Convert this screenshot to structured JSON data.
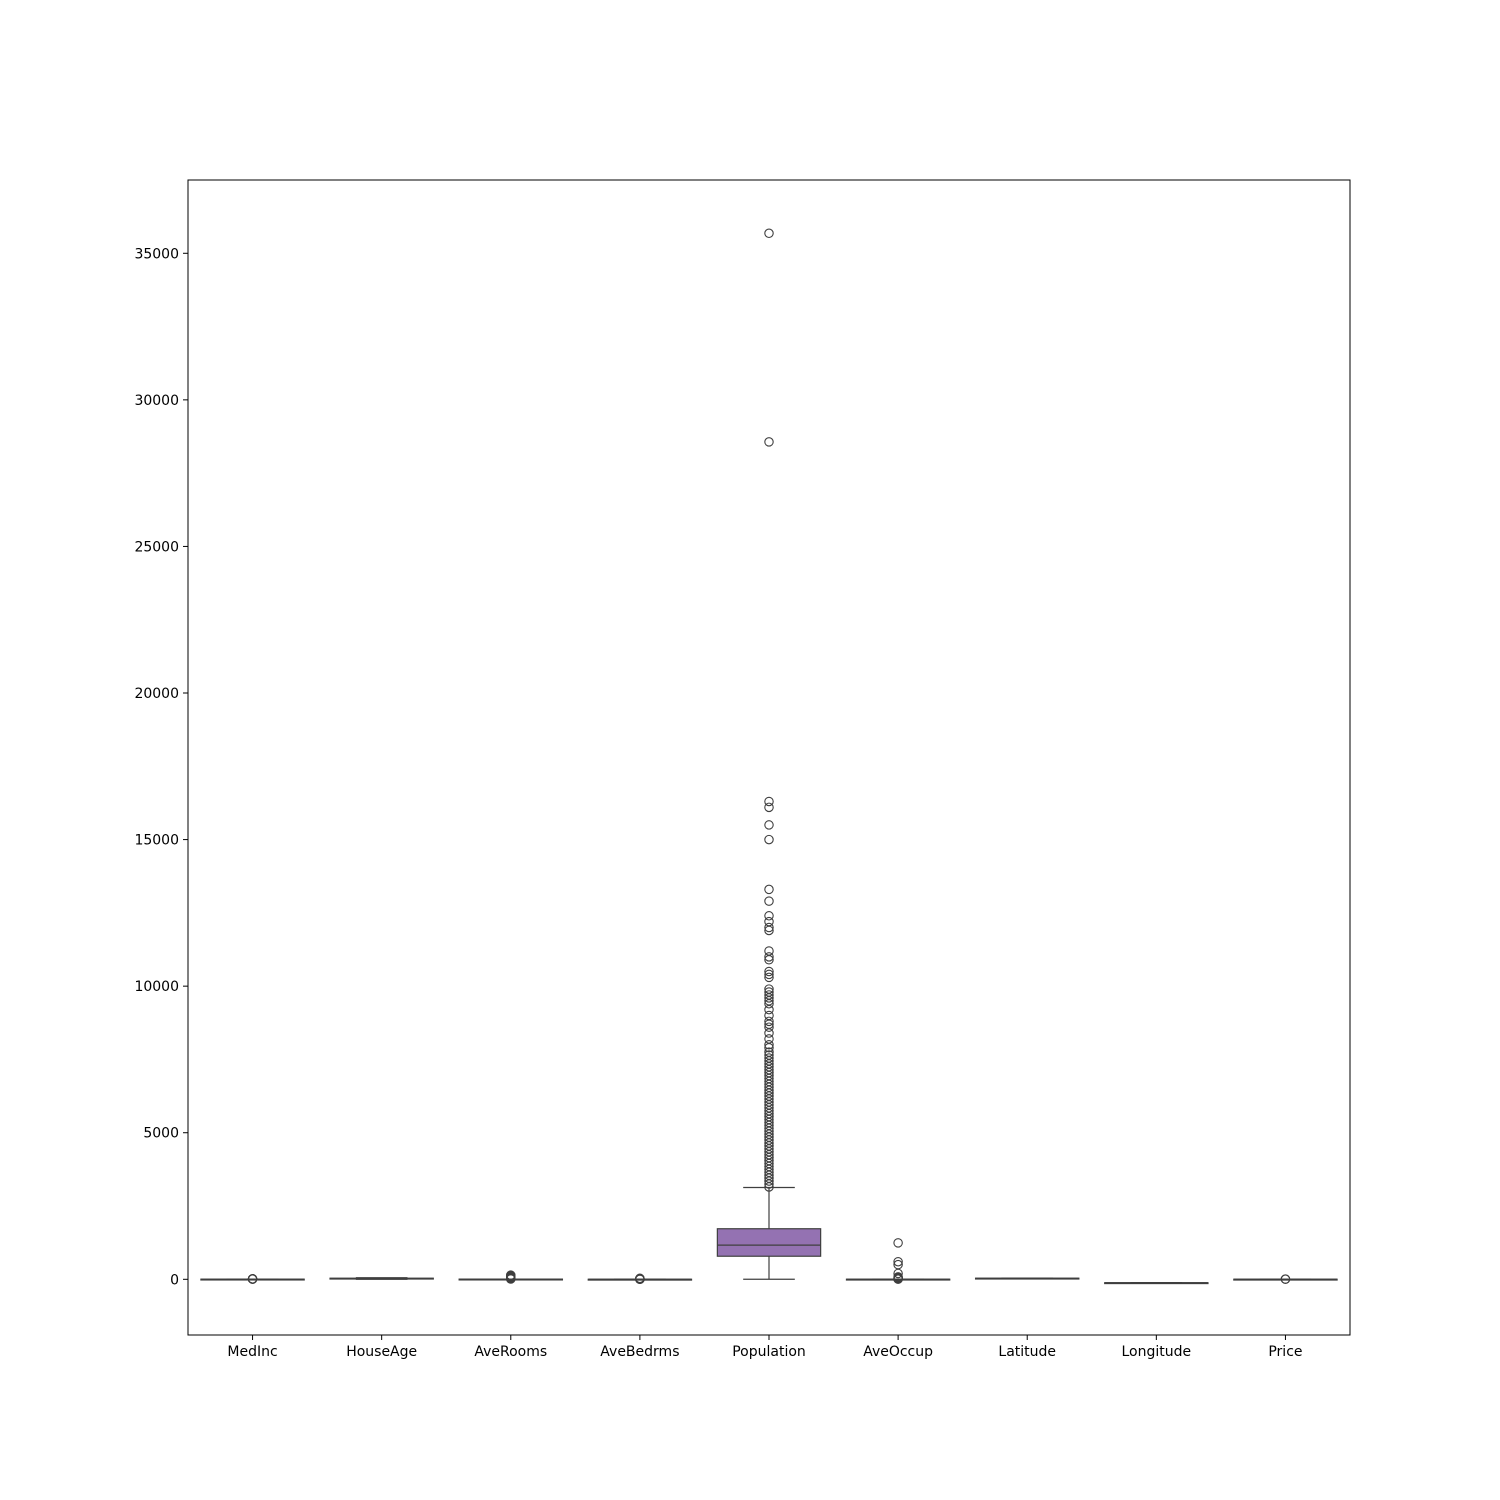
{
  "chart_data": {
    "type": "box",
    "title": "",
    "xlabel": "",
    "ylabel": "",
    "ylim": [
      -1900,
      37500
    ],
    "yticks": [
      0,
      5000,
      10000,
      15000,
      20000,
      25000,
      30000,
      35000
    ],
    "ytick_labels": [
      "0",
      "5000",
      "10000",
      "15000",
      "20000",
      "25000",
      "30000",
      "35000"
    ],
    "grid": false,
    "legend": "none",
    "categories": [
      "MedInc",
      "HouseAge",
      "AveRooms",
      "AveBedrms",
      "Population",
      "AveOccup",
      "Latitude",
      "Longitude",
      "Price"
    ],
    "boxes": [
      {
        "name": "MedInc",
        "color": "#1f77b4",
        "whisker_low": 0.5,
        "q1": 2.6,
        "median": 3.5,
        "q3": 4.7,
        "whisker_high": 8.0,
        "outliers": [
          8.5,
          9.5,
          10.5,
          11.5,
          12.5,
          13.5,
          15.0
        ]
      },
      {
        "name": "HouseAge",
        "color": "#ff7f0e",
        "whisker_low": 1,
        "q1": 18,
        "median": 29,
        "q3": 37,
        "whisker_high": 52,
        "outliers": []
      },
      {
        "name": "AveRooms",
        "color": "#2ca02c",
        "whisker_low": 1,
        "q1": 4.4,
        "median": 5.2,
        "q3": 6.1,
        "whisker_high": 8.5,
        "outliers": [
          10,
          20,
          30,
          40,
          60,
          80,
          100,
          120,
          142
        ]
      },
      {
        "name": "AveBedrms",
        "color": "#d62728",
        "whisker_low": 0.9,
        "q1": 1.0,
        "median": 1.05,
        "q3": 1.1,
        "whisker_high": 1.2,
        "outliers": [
          1.5,
          3,
          5,
          10,
          15,
          20,
          25,
          34
        ]
      },
      {
        "name": "Population",
        "color": "#9467bd",
        "whisker_low": 3,
        "q1": 787,
        "median": 1166,
        "q3": 1725,
        "whisker_high": 3132,
        "outliers": [
          3150,
          3250,
          3350,
          3450,
          3550,
          3650,
          3750,
          3850,
          3950,
          4050,
          4150,
          4250,
          4350,
          4450,
          4550,
          4650,
          4750,
          4850,
          4950,
          5050,
          5150,
          5250,
          5350,
          5450,
          5550,
          5650,
          5750,
          5850,
          5950,
          6050,
          6150,
          6250,
          6350,
          6450,
          6550,
          6650,
          6750,
          6850,
          6950,
          7050,
          7150,
          7250,
          7350,
          7450,
          7550,
          7650,
          7750,
          7900,
          8000,
          8200,
          8400,
          8600,
          8700,
          8800,
          9000,
          9200,
          9400,
          9500,
          9600,
          9700,
          9800,
          9900,
          10300,
          10400,
          10500,
          10900,
          11000,
          11200,
          11900,
          12000,
          12200,
          12400,
          12900,
          13300,
          15000,
          15500,
          16100,
          16300,
          28566,
          35682
        ]
      },
      {
        "name": "AveOccup",
        "color": "#8c564b",
        "whisker_low": 1.2,
        "q1": 2.4,
        "median": 2.8,
        "q3": 3.3,
        "whisker_high": 4.6,
        "outliers": [
          5,
          10,
          20,
          30,
          40,
          60,
          83,
          200,
          500,
          600,
          1243
        ]
      },
      {
        "name": "Latitude",
        "color": "#e377c2",
        "whisker_low": 32.5,
        "q1": 33.9,
        "median": 34.3,
        "q3": 37.7,
        "whisker_high": 42.0,
        "outliers": []
      },
      {
        "name": "Longitude",
        "color": "#7f7f7f",
        "whisker_low": -124.3,
        "q1": -121.8,
        "median": -118.5,
        "q3": -118.0,
        "whisker_high": -114.3,
        "outliers": []
      },
      {
        "name": "Price",
        "color": "#bcbd22",
        "whisker_low": 0.15,
        "q1": 1.2,
        "median": 1.8,
        "q3": 2.6,
        "whisker_high": 4.8,
        "outliers": [
          4.9,
          5.0
        ]
      }
    ]
  }
}
